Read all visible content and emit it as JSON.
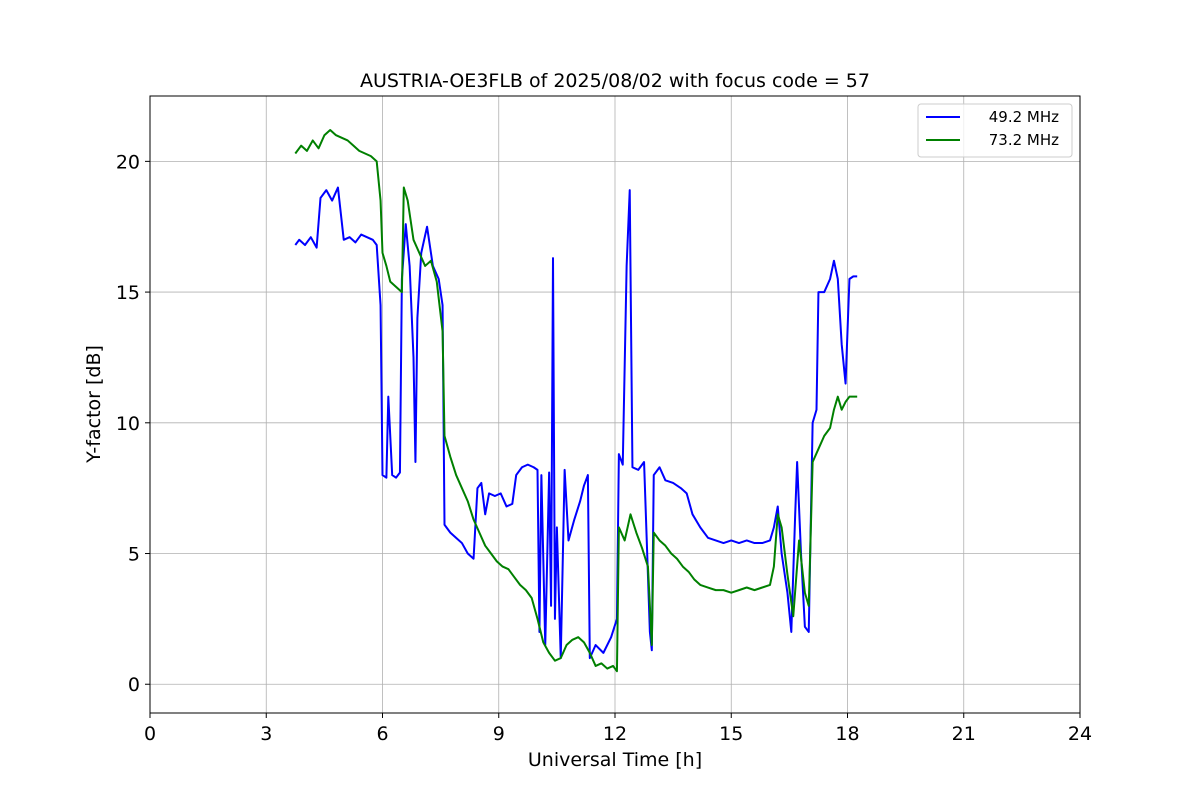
{
  "chart_data": {
    "type": "line",
    "title": "AUSTRIA-OE3FLB of 2025/08/02 with focus code = 57",
    "xlabel": "Universal Time [h]",
    "ylabel": "Y-factor [dB]",
    "xlim": [
      0,
      24
    ],
    "ylim": [
      -1.1,
      22.5
    ],
    "xticks": [
      0,
      3,
      6,
      9,
      12,
      15,
      18,
      21,
      24
    ],
    "yticks": [
      0,
      5,
      10,
      15,
      20
    ],
    "grid": true,
    "legend_position": "top-right",
    "series": [
      {
        "name": "49.2 MHz",
        "color": "#0000ff",
        "points": [
          [
            3.75,
            16.8
          ],
          [
            3.85,
            17.0
          ],
          [
            4.0,
            16.8
          ],
          [
            4.15,
            17.1
          ],
          [
            4.3,
            16.7
          ],
          [
            4.4,
            18.6
          ],
          [
            4.55,
            18.9
          ],
          [
            4.7,
            18.5
          ],
          [
            4.85,
            19.0
          ],
          [
            5.0,
            17.0
          ],
          [
            5.15,
            17.1
          ],
          [
            5.3,
            16.9
          ],
          [
            5.45,
            17.2
          ],
          [
            5.6,
            17.1
          ],
          [
            5.75,
            17.0
          ],
          [
            5.85,
            16.8
          ],
          [
            5.95,
            14.5
          ],
          [
            6.0,
            8.0
          ],
          [
            6.1,
            7.9
          ],
          [
            6.15,
            11.0
          ],
          [
            6.25,
            8.0
          ],
          [
            6.35,
            7.9
          ],
          [
            6.45,
            8.1
          ],
          [
            6.5,
            15.5
          ],
          [
            6.6,
            17.6
          ],
          [
            6.7,
            16.0
          ],
          [
            6.8,
            12.5
          ],
          [
            6.85,
            8.5
          ],
          [
            6.9,
            14.0
          ],
          [
            7.0,
            16.5
          ],
          [
            7.15,
            17.5
          ],
          [
            7.3,
            16.0
          ],
          [
            7.45,
            15.5
          ],
          [
            7.55,
            14.5
          ],
          [
            7.6,
            6.1
          ],
          [
            7.75,
            5.8
          ],
          [
            7.9,
            5.6
          ],
          [
            8.05,
            5.4
          ],
          [
            8.2,
            5.0
          ],
          [
            8.35,
            4.8
          ],
          [
            8.45,
            7.5
          ],
          [
            8.55,
            7.7
          ],
          [
            8.65,
            6.5
          ],
          [
            8.75,
            7.3
          ],
          [
            8.9,
            7.2
          ],
          [
            9.05,
            7.3
          ],
          [
            9.2,
            6.8
          ],
          [
            9.35,
            6.9
          ],
          [
            9.45,
            8.0
          ],
          [
            9.6,
            8.3
          ],
          [
            9.75,
            8.4
          ],
          [
            9.9,
            8.3
          ],
          [
            10.0,
            8.2
          ],
          [
            10.05,
            2.0
          ],
          [
            10.1,
            8.0
          ],
          [
            10.2,
            1.5
          ],
          [
            10.3,
            8.1
          ],
          [
            10.35,
            3.0
          ],
          [
            10.4,
            16.3
          ],
          [
            10.45,
            2.5
          ],
          [
            10.5,
            6.0
          ],
          [
            10.6,
            1.0
          ],
          [
            10.7,
            8.2
          ],
          [
            10.8,
            5.5
          ],
          [
            10.95,
            6.3
          ],
          [
            11.1,
            7.0
          ],
          [
            11.2,
            7.6
          ],
          [
            11.3,
            8.0
          ],
          [
            11.35,
            1.0
          ],
          [
            11.5,
            1.5
          ],
          [
            11.7,
            1.2
          ],
          [
            11.9,
            1.8
          ],
          [
            12.05,
            2.5
          ],
          [
            12.1,
            8.8
          ],
          [
            12.2,
            8.4
          ],
          [
            12.3,
            16.0
          ],
          [
            12.38,
            18.9
          ],
          [
            12.45,
            8.3
          ],
          [
            12.6,
            8.2
          ],
          [
            12.75,
            8.5
          ],
          [
            12.9,
            2.0
          ],
          [
            12.95,
            1.3
          ],
          [
            13.0,
            8.0
          ],
          [
            13.15,
            8.3
          ],
          [
            13.3,
            7.8
          ],
          [
            13.5,
            7.7
          ],
          [
            13.7,
            7.5
          ],
          [
            13.85,
            7.3
          ],
          [
            14.0,
            6.5
          ],
          [
            14.2,
            6.0
          ],
          [
            14.4,
            5.6
          ],
          [
            14.6,
            5.5
          ],
          [
            14.8,
            5.4
          ],
          [
            15.0,
            5.5
          ],
          [
            15.2,
            5.4
          ],
          [
            15.4,
            5.5
          ],
          [
            15.6,
            5.4
          ],
          [
            15.8,
            5.4
          ],
          [
            16.0,
            5.5
          ],
          [
            16.1,
            6.0
          ],
          [
            16.2,
            6.8
          ],
          [
            16.3,
            5.0
          ],
          [
            16.45,
            3.5
          ],
          [
            16.55,
            2.0
          ],
          [
            16.65,
            6.5
          ],
          [
            16.7,
            8.5
          ],
          [
            16.8,
            5.0
          ],
          [
            16.9,
            2.2
          ],
          [
            17.0,
            2.0
          ],
          [
            17.1,
            10.0
          ],
          [
            17.2,
            10.5
          ],
          [
            17.25,
            15.0
          ],
          [
            17.4,
            15.0
          ],
          [
            17.55,
            15.5
          ],
          [
            17.65,
            16.2
          ],
          [
            17.75,
            15.5
          ],
          [
            17.85,
            13.0
          ],
          [
            17.95,
            11.5
          ],
          [
            18.05,
            15.5
          ],
          [
            18.15,
            15.6
          ],
          [
            18.25,
            15.6
          ]
        ]
      },
      {
        "name": "73.2 MHz",
        "color": "#008000",
        "points": [
          [
            3.75,
            20.3
          ],
          [
            3.9,
            20.6
          ],
          [
            4.05,
            20.4
          ],
          [
            4.2,
            20.8
          ],
          [
            4.35,
            20.5
          ],
          [
            4.5,
            21.0
          ],
          [
            4.65,
            21.2
          ],
          [
            4.8,
            21.0
          ],
          [
            4.95,
            20.9
          ],
          [
            5.1,
            20.8
          ],
          [
            5.25,
            20.6
          ],
          [
            5.4,
            20.4
          ],
          [
            5.55,
            20.3
          ],
          [
            5.7,
            20.2
          ],
          [
            5.85,
            20.0
          ],
          [
            5.95,
            18.5
          ],
          [
            6.0,
            16.5
          ],
          [
            6.1,
            16.0
          ],
          [
            6.2,
            15.4
          ],
          [
            6.35,
            15.2
          ],
          [
            6.5,
            15.0
          ],
          [
            6.55,
            19.0
          ],
          [
            6.65,
            18.5
          ],
          [
            6.8,
            17.0
          ],
          [
            6.95,
            16.5
          ],
          [
            7.1,
            16.0
          ],
          [
            7.25,
            16.2
          ],
          [
            7.4,
            15.4
          ],
          [
            7.55,
            13.5
          ],
          [
            7.6,
            9.5
          ],
          [
            7.75,
            8.7
          ],
          [
            7.9,
            8.0
          ],
          [
            8.05,
            7.5
          ],
          [
            8.2,
            7.0
          ],
          [
            8.35,
            6.3
          ],
          [
            8.5,
            5.8
          ],
          [
            8.65,
            5.3
          ],
          [
            8.8,
            5.0
          ],
          [
            8.95,
            4.7
          ],
          [
            9.1,
            4.5
          ],
          [
            9.25,
            4.4
          ],
          [
            9.4,
            4.1
          ],
          [
            9.55,
            3.8
          ],
          [
            9.7,
            3.6
          ],
          [
            9.85,
            3.3
          ],
          [
            10.0,
            2.5
          ],
          [
            10.15,
            1.6
          ],
          [
            10.3,
            1.2
          ],
          [
            10.45,
            0.9
          ],
          [
            10.6,
            1.0
          ],
          [
            10.75,
            1.5
          ],
          [
            10.9,
            1.7
          ],
          [
            11.05,
            1.8
          ],
          [
            11.2,
            1.6
          ],
          [
            11.35,
            1.2
          ],
          [
            11.5,
            0.7
          ],
          [
            11.65,
            0.8
          ],
          [
            11.8,
            0.6
          ],
          [
            11.95,
            0.7
          ],
          [
            12.05,
            0.5
          ],
          [
            12.1,
            6.0
          ],
          [
            12.25,
            5.5
          ],
          [
            12.4,
            6.5
          ],
          [
            12.55,
            5.8
          ],
          [
            12.7,
            5.2
          ],
          [
            12.85,
            4.5
          ],
          [
            12.95,
            1.5
          ],
          [
            13.0,
            5.8
          ],
          [
            13.15,
            5.5
          ],
          [
            13.3,
            5.3
          ],
          [
            13.45,
            5.0
          ],
          [
            13.6,
            4.8
          ],
          [
            13.75,
            4.5
          ],
          [
            13.9,
            4.3
          ],
          [
            14.05,
            4.0
          ],
          [
            14.2,
            3.8
          ],
          [
            14.4,
            3.7
          ],
          [
            14.6,
            3.6
          ],
          [
            14.8,
            3.6
          ],
          [
            15.0,
            3.5
          ],
          [
            15.2,
            3.6
          ],
          [
            15.4,
            3.7
          ],
          [
            15.6,
            3.6
          ],
          [
            15.8,
            3.7
          ],
          [
            16.0,
            3.8
          ],
          [
            16.1,
            4.5
          ],
          [
            16.2,
            6.5
          ],
          [
            16.3,
            6.0
          ],
          [
            16.45,
            4.2
          ],
          [
            16.6,
            2.6
          ],
          [
            16.75,
            5.5
          ],
          [
            16.9,
            3.5
          ],
          [
            17.0,
            3.0
          ],
          [
            17.1,
            8.5
          ],
          [
            17.25,
            9.0
          ],
          [
            17.4,
            9.5
          ],
          [
            17.55,
            9.8
          ],
          [
            17.65,
            10.5
          ],
          [
            17.75,
            11.0
          ],
          [
            17.85,
            10.5
          ],
          [
            17.95,
            10.8
          ],
          [
            18.05,
            11.0
          ],
          [
            18.15,
            11.0
          ],
          [
            18.25,
            11.0
          ]
        ]
      }
    ]
  }
}
